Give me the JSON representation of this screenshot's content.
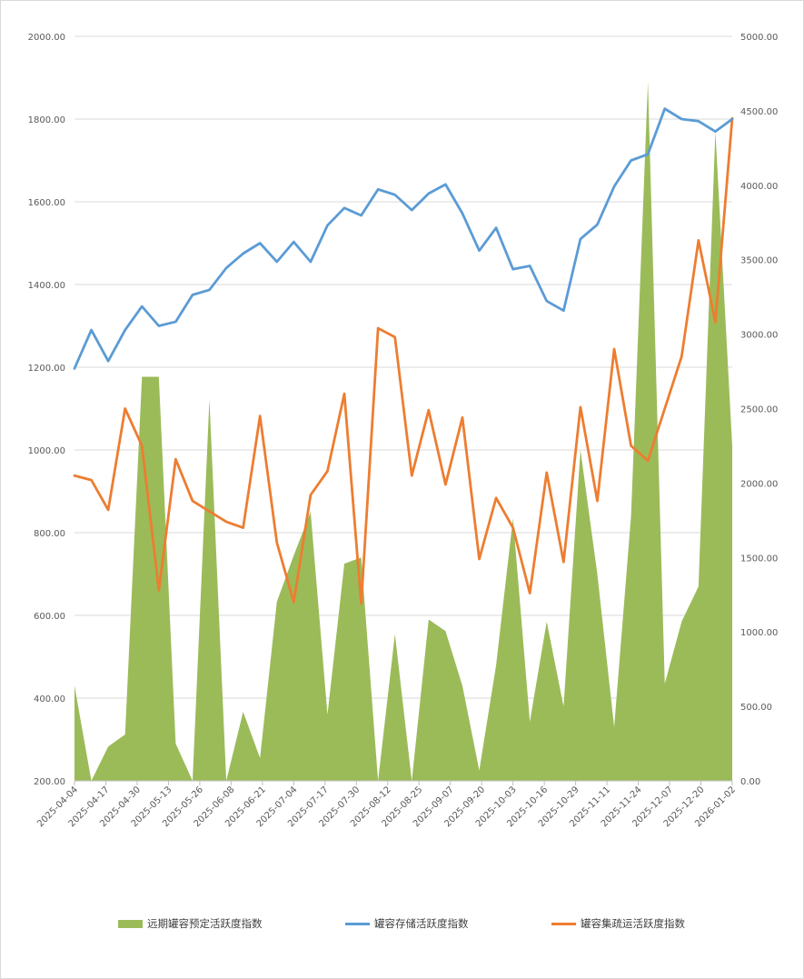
{
  "chart_data": {
    "type": "area+line",
    "title": "",
    "left_axis": {
      "min": 200,
      "max": 2000,
      "step": 200,
      "decimals": 2
    },
    "right_axis": {
      "min": 0,
      "max": 5000,
      "step": 500,
      "decimals": 2
    },
    "x_tick_labels": [
      "2025-04-04",
      "2025-04-17",
      "2025-04-30",
      "2025-05-13",
      "2025-05-26",
      "2025-06-08",
      "2025-06-21",
      "2025-07-04",
      "2025-07-17",
      "2025-07-30",
      "2025-08-12",
      "2025-08-25",
      "2025-09-07",
      "2025-09-20",
      "2025-10-03",
      "2025-10-16",
      "2025-10-29",
      "2025-11-11",
      "2025-11-24",
      "2025-12-07",
      "2025-12-20",
      "2026-01-02"
    ],
    "series": [
      {
        "name": "远期罐容预定活跃度指数",
        "type": "area",
        "axis": "left",
        "color": "#9bbb59",
        "values": [
          430,
          200,
          283,
          312,
          1177,
          1177,
          290,
          200,
          1122,
          200,
          367,
          255,
          633,
          745,
          850,
          360,
          725,
          740,
          200,
          555,
          200,
          590,
          562,
          430,
          225,
          480,
          835,
          343,
          585,
          380,
          1000,
          700,
          330,
          840,
          1890,
          435,
          585,
          670,
          1770,
          1010
        ]
      },
      {
        "name": "罐容存储活跃度指数",
        "type": "line",
        "axis": "left",
        "color": "#5b9bd5",
        "values": [
          1197,
          1290,
          1215,
          1290,
          1347,
          1300,
          1310,
          1375,
          1387,
          1440,
          1475,
          1500,
          1455,
          1503,
          1455,
          1543,
          1585,
          1567,
          1630,
          1617,
          1580,
          1620,
          1642,
          1572,
          1482,
          1537,
          1437,
          1445,
          1360,
          1337,
          1510,
          1545,
          1637,
          1700,
          1715,
          1825,
          1800,
          1795,
          1770,
          1800
        ]
      },
      {
        "name": "罐容集疏运活跃度指数",
        "type": "line",
        "axis": "right",
        "color": "#ed7d31",
        "values": [
          2050,
          2020,
          1820,
          2500,
          2250,
          1280,
          2160,
          1880,
          1810,
          1740,
          1700,
          2450,
          1600,
          1200,
          1920,
          2080,
          2600,
          1190,
          3040,
          2980,
          2050,
          2490,
          1990,
          2440,
          1490,
          1900,
          1700,
          1260,
          2070,
          1470,
          2510,
          1880,
          2900,
          2250,
          2150,
          2500,
          2850,
          3630,
          3080,
          4450
        ]
      }
    ]
  }
}
